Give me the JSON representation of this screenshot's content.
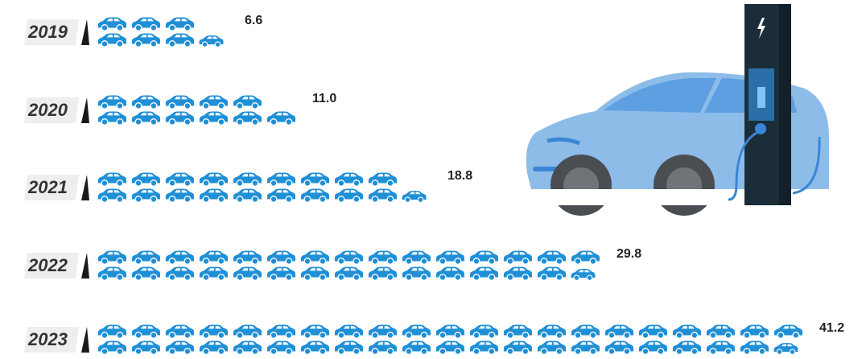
{
  "chart_data": {
    "type": "pictograph",
    "categories": [
      "2019",
      "2020",
      "2021",
      "2022",
      "2023"
    ],
    "values": [
      6.6,
      11.0,
      18.8,
      29.8,
      41.2
    ],
    "value_labels": [
      "6.6",
      "11.0",
      "18.8",
      "29.8",
      "41.2"
    ],
    "color": "#1f8fd6"
  }
}
